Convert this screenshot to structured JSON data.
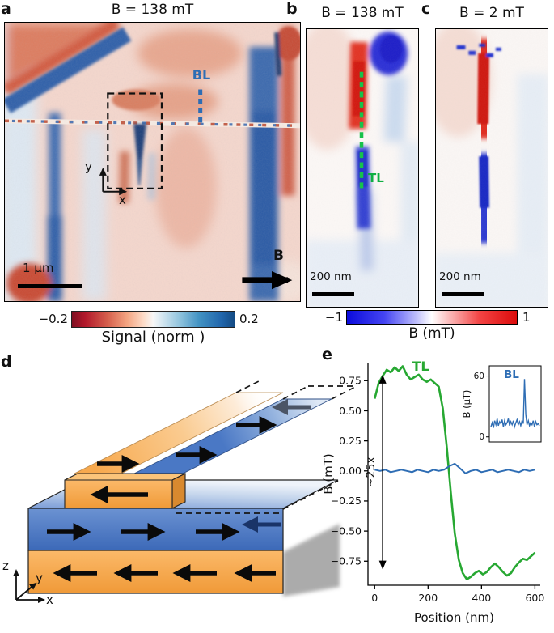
{
  "colors": {
    "red": "#c0392b",
    "blue": "#2166ac",
    "green": "#17c24b",
    "orange": "#f7a94e",
    "mid_blue": "#4a78c5",
    "bl_blue": "#2e6db4"
  },
  "panel_a": {
    "label": "a",
    "title": "B = 138 mT",
    "bl_label": "BL",
    "axis_x": "x",
    "axis_y": "y",
    "scalebar": "1 μm",
    "field_label": "B",
    "colorbar": {
      "min": "−0.2",
      "max": "0.2",
      "label": "Signal (norm )"
    }
  },
  "panel_b": {
    "label": "b",
    "title": "B = 138 mT",
    "tl_label": "TL",
    "scalebar": "200 nm"
  },
  "panel_c": {
    "label": "c",
    "title": "B = 2 mT",
    "scalebar": "200 nm"
  },
  "colorbar_bc": {
    "min": "−1",
    "max": "1",
    "label": "B (mT)"
  },
  "panel_d": {
    "label": "d",
    "axis_x": "x",
    "axis_y": "y",
    "axis_z": "z"
  },
  "panel_e": {
    "label": "e"
  },
  "chart_data": {
    "type": "line",
    "xlabel": "Position (nm)",
    "ylabel": "B (mT)",
    "xlim": [
      -25,
      620
    ],
    "ylim": [
      -0.95,
      0.9
    ],
    "xticks": [
      0,
      200,
      400,
      600
    ],
    "ytick_vals": [
      0.75,
      0.5,
      0.25,
      0,
      -0.25,
      -0.5,
      -0.75
    ],
    "ytick_labels": [
      "0.75",
      "0.50",
      "0.25",
      "0.00",
      "−0.25",
      "−0.50",
      "−0.75"
    ],
    "annotation": "~25x",
    "legend_position": "inline",
    "grid": false,
    "series": [
      {
        "name": "TL",
        "color": "#27a832",
        "x": [
          0,
          15,
          30,
          45,
          60,
          75,
          90,
          105,
          120,
          135,
          150,
          165,
          180,
          195,
          210,
          225,
          240,
          255,
          270,
          285,
          300,
          315,
          330,
          345,
          360,
          375,
          390,
          405,
          420,
          435,
          450,
          465,
          480,
          495,
          510,
          525,
          540,
          555,
          570,
          585,
          600
        ],
        "y": [
          0.6,
          0.73,
          0.79,
          0.84,
          0.82,
          0.86,
          0.83,
          0.87,
          0.8,
          0.76,
          0.78,
          0.8,
          0.76,
          0.74,
          0.76,
          0.73,
          0.7,
          0.52,
          0.2,
          -0.18,
          -0.52,
          -0.74,
          -0.85,
          -0.9,
          -0.88,
          -0.85,
          -0.83,
          -0.86,
          -0.84,
          -0.8,
          -0.77,
          -0.8,
          -0.84,
          -0.87,
          -0.85,
          -0.8,
          -0.76,
          -0.73,
          -0.74,
          -0.71,
          -0.68
        ]
      },
      {
        "name": "BL",
        "color": "#2e6db4",
        "x": [
          0,
          20,
          40,
          60,
          80,
          100,
          120,
          140,
          160,
          180,
          200,
          220,
          240,
          260,
          280,
          300,
          320,
          340,
          360,
          380,
          400,
          420,
          440,
          460,
          480,
          500,
          520,
          540,
          560,
          580,
          600
        ],
        "y": [
          0.01,
          0.0,
          0.01,
          -0.01,
          0.0,
          0.01,
          0.0,
          -0.01,
          0.01,
          0.0,
          -0.01,
          0.01,
          0.0,
          0.01,
          0.04,
          0.06,
          0.02,
          -0.02,
          0.0,
          0.01,
          -0.01,
          0.0,
          0.01,
          -0.01,
          0.0,
          0.01,
          0.0,
          -0.01,
          0.01,
          0.0,
          0.01
        ]
      }
    ],
    "inset": {
      "label": "BL",
      "ylabel": "B (μT)",
      "ylim": [
        -5,
        70
      ],
      "yticks": [
        60,
        0
      ],
      "color": "#2e6db4",
      "values": [
        10,
        14,
        9,
        16,
        12,
        18,
        11,
        15,
        13,
        17,
        10,
        16,
        12,
        14,
        18,
        11,
        15,
        12,
        16,
        10,
        14,
        17,
        12,
        15,
        11,
        16,
        13,
        57,
        22,
        12,
        16,
        11,
        14,
        12,
        16,
        10,
        15,
        12,
        13,
        11
      ]
    }
  }
}
